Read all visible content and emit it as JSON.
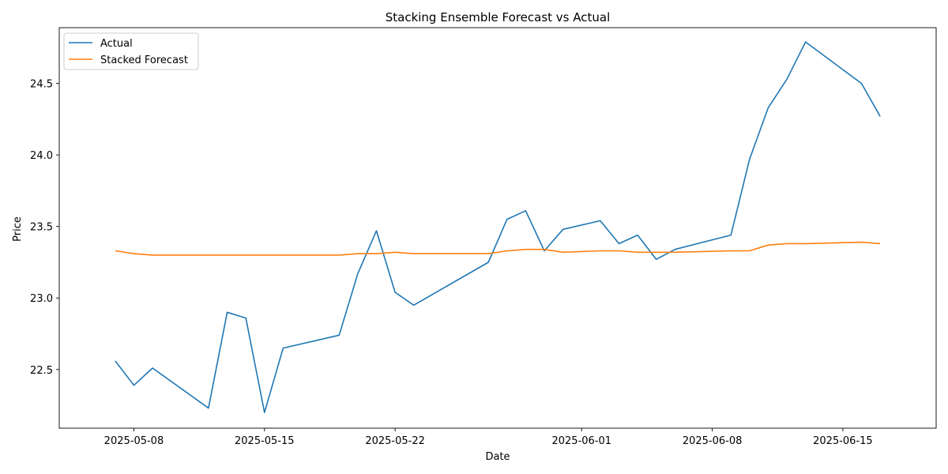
{
  "chart_data": {
    "type": "line",
    "title": "Stacking Ensemble Forecast vs Actual",
    "xlabel": "Date",
    "ylabel": "Price",
    "x_ticks": [
      "2025-05-08",
      "2025-05-15",
      "2025-05-22",
      "2025-06-01",
      "2025-06-08",
      "2025-06-15"
    ],
    "y_ticks": [
      "22.5",
      "23.0",
      "23.5",
      "24.0",
      "24.5"
    ],
    "xlim": [
      "2025-05-04",
      "2025-06-20"
    ],
    "ylim": [
      22.09,
      24.89
    ],
    "grid": false,
    "legend_position": "top-left",
    "x": [
      "2025-05-07",
      "2025-05-08",
      "2025-05-09",
      "2025-05-12",
      "2025-05-13",
      "2025-05-14",
      "2025-05-15",
      "2025-05-16",
      "2025-05-19",
      "2025-05-20",
      "2025-05-21",
      "2025-05-22",
      "2025-05-23",
      "2025-05-27",
      "2025-05-28",
      "2025-05-29",
      "2025-05-30",
      "2025-05-31",
      "2025-06-02",
      "2025-06-03",
      "2025-06-04",
      "2025-06-05",
      "2025-06-06",
      "2025-06-09",
      "2025-06-10",
      "2025-06-11",
      "2025-06-12",
      "2025-06-13",
      "2025-06-16",
      "2025-06-17"
    ],
    "series": [
      {
        "name": "Actual",
        "color": "#1f77b4",
        "values": [
          22.56,
          22.39,
          22.51,
          22.23,
          22.9,
          22.86,
          22.2,
          22.65,
          22.74,
          23.17,
          23.47,
          23.04,
          22.95,
          23.25,
          23.55,
          23.61,
          23.33,
          23.48,
          23.54,
          23.38,
          23.44,
          23.27,
          23.34,
          23.44,
          23.97,
          24.33,
          24.53,
          24.79,
          24.5,
          24.27
        ]
      },
      {
        "name": "Stacked Forecast",
        "color": "#ff7f0e",
        "values": [
          23.33,
          23.31,
          23.3,
          23.3,
          23.3,
          23.3,
          23.3,
          23.3,
          23.3,
          23.31,
          23.31,
          23.32,
          23.31,
          23.31,
          23.33,
          23.34,
          23.34,
          23.32,
          23.33,
          23.33,
          23.32,
          23.32,
          23.32,
          23.33,
          23.33,
          23.37,
          23.38,
          23.38,
          23.39,
          23.38
        ]
      }
    ]
  }
}
